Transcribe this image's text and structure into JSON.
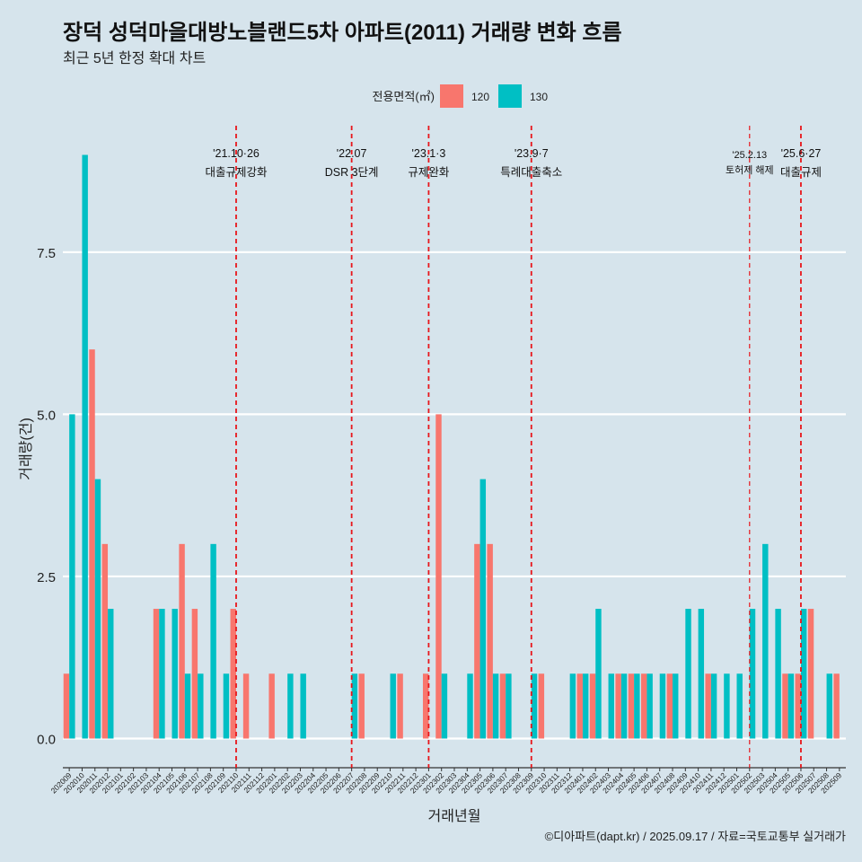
{
  "chart_data": {
    "type": "bar",
    "title": "장덕 성덕마을대방노블랜드5차 아파트(2011) 거래량 변화 흐름",
    "subtitle": "최근 5년 한정 확대 차트",
    "xlabel": "거래년월",
    "ylabel": "거래량(건)",
    "caption": "©디아파트(dapt.kr) / 2025.09.17 / 자료=국토교통부 실거래가",
    "legend": {
      "title": "전용면적(㎡)",
      "position": "top",
      "entries": [
        {
          "name": "120",
          "color": "#f8766d"
        },
        {
          "name": "130",
          "color": "#00bfc4"
        }
      ]
    },
    "ylim": [
      -0.45,
      9.45
    ],
    "yticks": [
      0.0,
      2.5,
      5.0,
      7.5
    ],
    "ytick_labels": [
      "0.0",
      "2.5",
      "5.0",
      "7.5"
    ],
    "categories": [
      "202009",
      "202010",
      "202011",
      "202012",
      "202101",
      "202102",
      "202103",
      "202104",
      "202105",
      "202106",
      "202107",
      "202108",
      "202109",
      "202110",
      "202111",
      "202112",
      "202201",
      "202202",
      "202203",
      "202204",
      "202205",
      "202206",
      "202207",
      "202208",
      "202209",
      "202210",
      "202211",
      "202212",
      "202301",
      "202302",
      "202303",
      "202304",
      "202305",
      "202306",
      "202307",
      "202308",
      "202309",
      "202310",
      "202311",
      "202312",
      "202401",
      "202402",
      "202403",
      "202404",
      "202405",
      "202406",
      "202407",
      "202408",
      "202409",
      "202410",
      "202411",
      "202412",
      "202501",
      "202502",
      "202503",
      "202504",
      "202505",
      "202506",
      "202507",
      "202508",
      "202509"
    ],
    "series": [
      {
        "name": "120",
        "color": "#f8766d",
        "values": [
          1,
          0,
          6,
          3,
          0,
          0,
          0,
          2,
          0,
          3,
          2,
          0,
          0,
          2,
          1,
          0,
          1,
          0,
          0,
          0,
          0,
          0,
          0,
          1,
          0,
          0,
          1,
          0,
          1,
          5,
          0,
          0,
          3,
          3,
          1,
          0,
          0,
          1,
          0,
          0,
          1,
          1,
          0,
          1,
          1,
          1,
          0,
          1,
          0,
          0,
          1,
          0,
          0,
          0,
          0,
          0,
          1,
          1,
          2,
          0,
          1
        ]
      },
      {
        "name": "130",
        "color": "#00bfc4",
        "values": [
          5,
          9,
          4,
          2,
          0,
          0,
          0,
          2,
          2,
          1,
          1,
          3,
          1,
          0,
          0,
          0,
          0,
          1,
          1,
          0,
          0,
          0,
          1,
          0,
          0,
          1,
          0,
          0,
          0,
          1,
          0,
          1,
          4,
          1,
          1,
          0,
          1,
          0,
          0,
          1,
          1,
          2,
          1,
          1,
          1,
          1,
          1,
          1,
          2,
          2,
          1,
          1,
          1,
          2,
          3,
          2,
          1,
          2,
          0,
          1,
          0
        ]
      }
    ],
    "annotations": [
      {
        "category": "202110",
        "date": "'21.10·26",
        "label": "대출규제강화",
        "small": false
      },
      {
        "category": "202207",
        "date": "'22.07",
        "label": "DSR 3단계",
        "small": false
      },
      {
        "category": "202301",
        "date": "'23.1·3",
        "label": "규제완화",
        "small": false
      },
      {
        "category": "202309",
        "date": "'23.9·7",
        "label": "특례대출축소",
        "small": false
      },
      {
        "category": "202502",
        "date": "'25.2.13",
        "label": "토허제 해제",
        "small": true
      },
      {
        "category": "202506",
        "date": "'25.6·27",
        "label": "대출규제",
        "small": false
      }
    ],
    "grid": true
  }
}
